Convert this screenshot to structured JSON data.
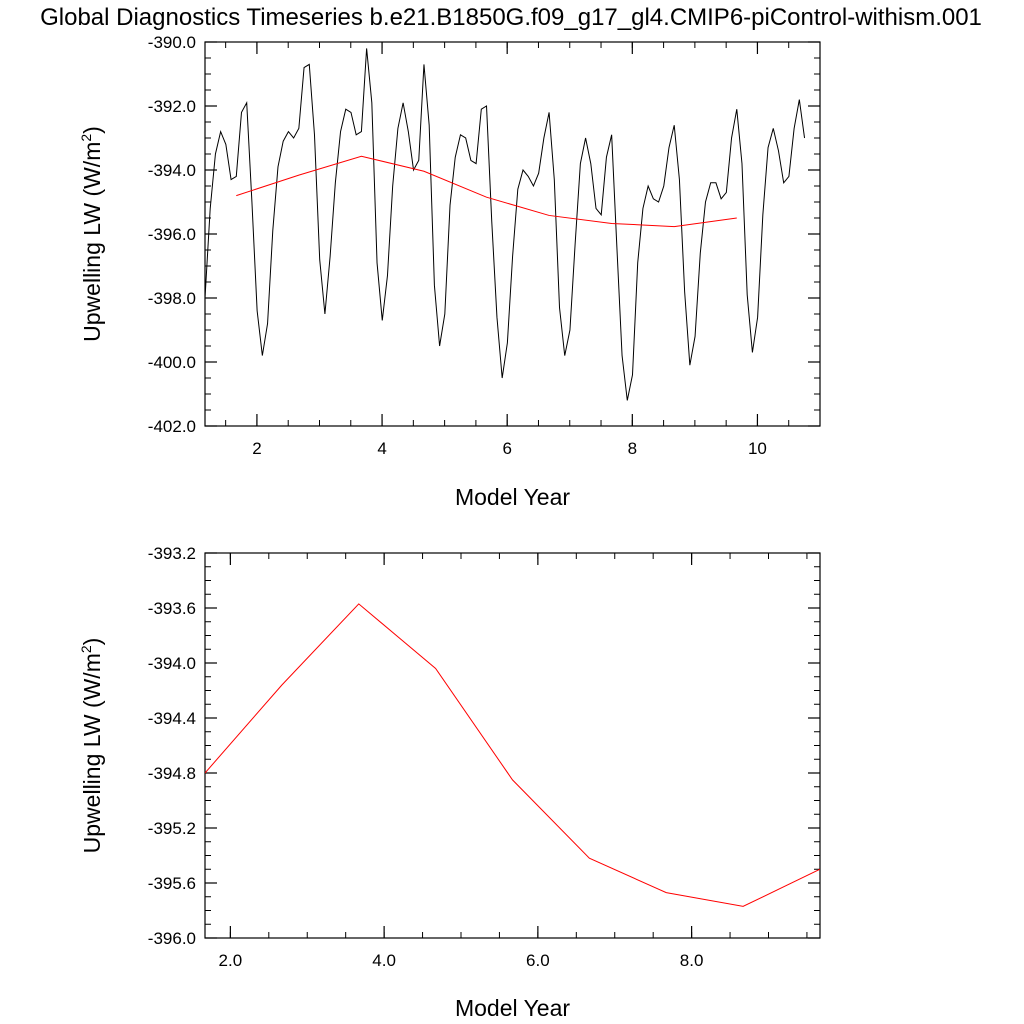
{
  "title": "Global Diagnostics Timeseries b.e21.B1850G.f09_g17_gl4.CMIP6-piControl-withism.001",
  "colors": {
    "monthly": "#000000",
    "annual": "#ff0000",
    "axes": "#000000"
  },
  "chart_data": [
    {
      "type": "line",
      "xlabel": "Model Year",
      "ylabel_main": "Upwelling LW (W/m",
      "ylabel_sup": "2",
      "ylabel_tail": ")",
      "xlim": [
        1.17,
        11.0
      ],
      "ylim": [
        -402.0,
        -390.0
      ],
      "x_ticks": [
        2,
        4,
        6,
        8,
        10
      ],
      "x_tick_labels": [
        "2",
        "4",
        "6",
        "8",
        "10"
      ],
      "y_ticks": [
        -390,
        -392,
        -394,
        -396,
        -398,
        -400,
        -402
      ],
      "y_tick_labels": [
        "-390.0",
        "-392.0",
        "-394.0",
        "-396.0",
        "-398.0",
        "-400.0",
        "-402.0"
      ],
      "series": [
        {
          "color": "#000000",
          "x_start": 1.17,
          "x_step": 0.08333,
          "values": [
            -398.0,
            -395.2,
            -393.5,
            -392.8,
            -393.2,
            -394.3,
            -394.2,
            -392.2,
            -391.9,
            -395.0,
            -398.4,
            -399.8,
            -398.8,
            -395.9,
            -393.9,
            -393.1,
            -392.8,
            -393.0,
            -392.7,
            -390.8,
            -390.7,
            -392.9,
            -396.8,
            -398.5,
            -396.7,
            -394.4,
            -392.8,
            -392.1,
            -392.2,
            -392.9,
            -392.8,
            -390.2,
            -391.9,
            -396.9,
            -398.7,
            -397.3,
            -394.5,
            -392.7,
            -391.9,
            -392.8,
            -394.0,
            -393.7,
            -390.7,
            -392.6,
            -397.6,
            -399.5,
            -398.5,
            -395.1,
            -393.6,
            -392.9,
            -393.0,
            -393.7,
            -393.8,
            -392.1,
            -392.0,
            -395.6,
            -398.6,
            -400.5,
            -399.4,
            -396.7,
            -394.6,
            -394.0,
            -394.2,
            -394.5,
            -394.1,
            -393.0,
            -392.2,
            -394.3,
            -398.3,
            -399.8,
            -399.0,
            -396.3,
            -393.8,
            -393.0,
            -393.8,
            -395.2,
            -395.4,
            -393.6,
            -392.9,
            -396.4,
            -399.8,
            -401.2,
            -400.4,
            -396.9,
            -395.2,
            -394.5,
            -394.9,
            -395.0,
            -394.5,
            -393.3,
            -392.6,
            -394.3,
            -397.8,
            -400.1,
            -399.2,
            -396.6,
            -395.0,
            -394.4,
            -394.4,
            -394.9,
            -394.7,
            -393.0,
            -392.1,
            -393.8,
            -397.9,
            -399.7,
            -398.6,
            -395.4,
            -393.3,
            -392.7,
            -393.4,
            -394.4,
            -394.2,
            -392.7,
            -391.8,
            -393.0
          ]
        },
        {
          "color": "#ff0000",
          "x": [
            1.67,
            2.67,
            3.67,
            4.67,
            5.67,
            6.67,
            7.67,
            8.67,
            9.67
          ],
          "values": [
            -394.8,
            -394.16,
            -393.57,
            -394.04,
            -394.85,
            -395.42,
            -395.67,
            -395.77,
            -395.5
          ]
        }
      ]
    },
    {
      "type": "line",
      "xlabel": "Model Year",
      "ylabel_main": "Upwelling LW (W/m",
      "ylabel_sup": "2",
      "ylabel_tail": ")",
      "xlim": [
        1.67,
        9.67
      ],
      "ylim": [
        -396.0,
        -393.2
      ],
      "x_ticks": [
        2.0,
        4.0,
        6.0,
        8.0
      ],
      "x_tick_labels": [
        "2.0",
        "4.0",
        "6.0",
        "8.0"
      ],
      "y_ticks": [
        -393.2,
        -393.6,
        -394.0,
        -394.4,
        -394.8,
        -395.2,
        -395.6,
        -396.0
      ],
      "y_tick_labels": [
        "-393.2",
        "-393.6",
        "-394.0",
        "-394.4",
        "-394.8",
        "-395.2",
        "-395.6",
        "-396.0"
      ],
      "series": [
        {
          "color": "#ff0000",
          "x": [
            1.67,
            2.67,
            3.67,
            4.67,
            5.67,
            6.67,
            7.67,
            8.67,
            9.67
          ],
          "values": [
            -394.8,
            -394.16,
            -393.57,
            -394.04,
            -394.85,
            -395.42,
            -395.67,
            -395.77,
            -395.5
          ]
        }
      ]
    }
  ]
}
